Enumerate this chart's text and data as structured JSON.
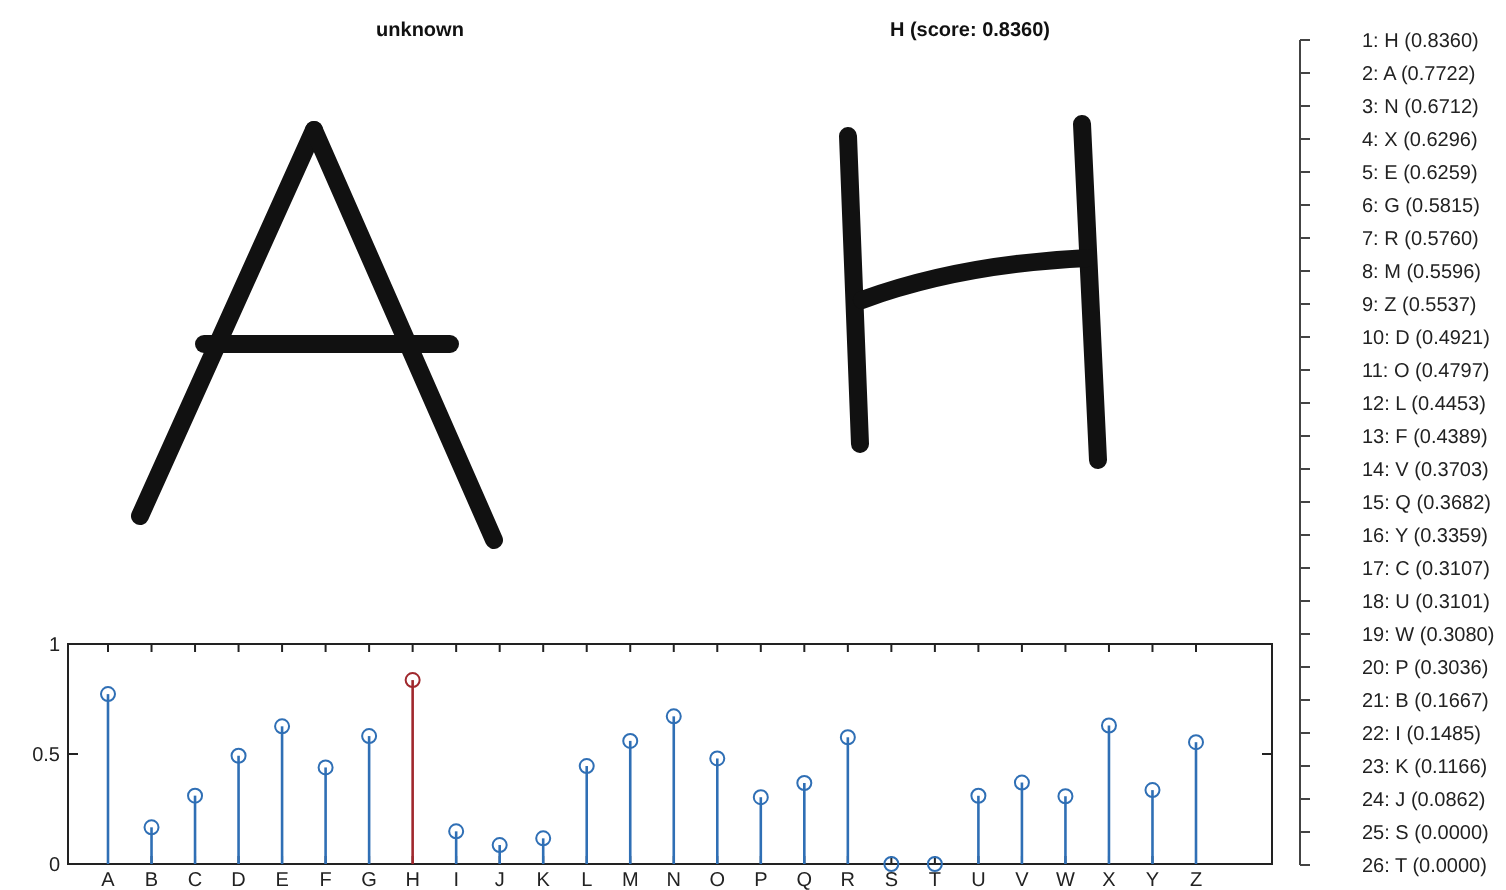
{
  "chart_data": {
    "type": "lollipop",
    "categories": [
      "A",
      "B",
      "C",
      "D",
      "E",
      "F",
      "G",
      "H",
      "I",
      "J",
      "K",
      "L",
      "M",
      "N",
      "O",
      "P",
      "Q",
      "R",
      "S",
      "T",
      "U",
      "V",
      "W",
      "X",
      "Y",
      "Z"
    ],
    "values": [
      0.7722,
      0.1667,
      0.3107,
      0.4921,
      0.6259,
      0.4389,
      0.5815,
      0.836,
      0.1485,
      0.0862,
      0.1166,
      0.4453,
      0.5596,
      0.6712,
      0.4797,
      0.3036,
      0.3682,
      0.576,
      0.0,
      0.0,
      0.3101,
      0.3703,
      0.308,
      0.6296,
      0.3359,
      0.5537
    ],
    "colors": [
      "#2f6fb5",
      "#2f6fb5",
      "#2f6fb5",
      "#2f6fb5",
      "#2f6fb5",
      "#2f6fb5",
      "#2f6fb5",
      "#a0282d",
      "#2f6fb5",
      "#2f6fb5",
      "#2f6fb5",
      "#2f6fb5",
      "#2f6fb5",
      "#2f6fb5",
      "#2f6fb5",
      "#2f6fb5",
      "#2f6fb5",
      "#2f6fb5",
      "#2f6fb5",
      "#2f6fb5",
      "#2f6fb5",
      "#2f6fb5",
      "#2f6fb5",
      "#2f6fb5",
      "#2f6fb5",
      "#2f6fb5"
    ],
    "ylim": [
      0,
      1
    ],
    "yticks": [
      0,
      0.5,
      1
    ],
    "marker": "circle",
    "annotations": [
      "unknown",
      "H (score: 0.8360)",
      "1: H (0.8360)",
      "2: A (0.7722)",
      "3: N (0.6712)",
      "4: X (0.6296)",
      "5: E (0.6259)",
      "6: G (0.5815)",
      "7: R (0.5760)",
      "8: M (0.5596)",
      "9: Z (0.5537)",
      "10: D (0.4921)",
      "11: O (0.4797)",
      "12: L (0.4453)",
      "13: F (0.4389)",
      "14: V (0.3703)",
      "15: Q (0.3682)",
      "16: Y (0.3359)",
      "17: C (0.3107)",
      "18: U (0.3101)",
      "19: W (0.3080)",
      "20: P (0.3036)",
      "21: B (0.1667)",
      "22: I (0.1485)",
      "23: K (0.1166)",
      "24: J (0.0862)",
      "25: S (0.0000)",
      "26: T (0.0000)"
    ]
  }
}
